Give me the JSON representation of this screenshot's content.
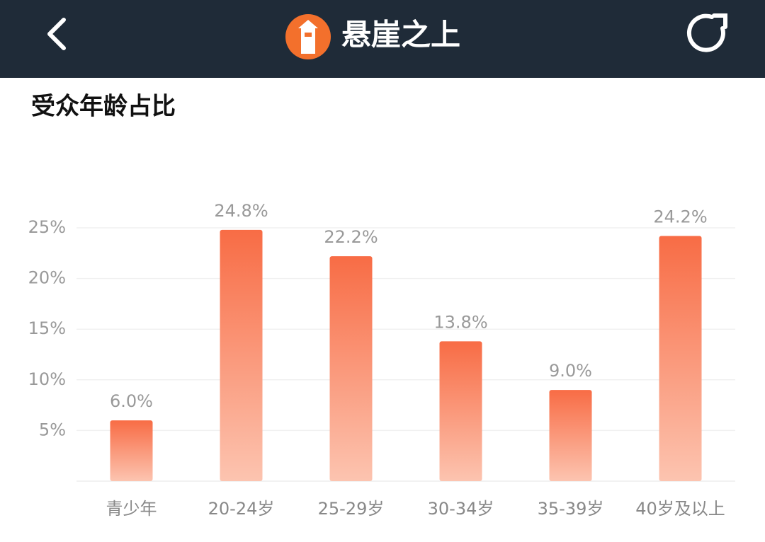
{
  "header": {
    "title": "悬崖之上"
  },
  "chart_data": {
    "type": "bar",
    "title": "受众年龄占比",
    "categories": [
      "青少年",
      "20-24岁",
      "25-29岁",
      "30-34岁",
      "35-39岁",
      "40岁及以上"
    ],
    "values": [
      6.0,
      24.8,
      22.2,
      13.8,
      9.0,
      24.2
    ],
    "value_labels": [
      "6.0%",
      "24.8%",
      "22.2%",
      "13.8%",
      "9.0%",
      "24.2%"
    ],
    "color": "#f86c45",
    "ylim": [
      0,
      25
    ],
    "yticks": [
      {
        "value": 5,
        "label": "5%"
      },
      {
        "value": 10,
        "label": "10%"
      },
      {
        "value": 15,
        "label": "15%"
      },
      {
        "value": 20,
        "label": "20%"
      },
      {
        "value": 25,
        "label": "25%"
      }
    ],
    "grid": true
  }
}
